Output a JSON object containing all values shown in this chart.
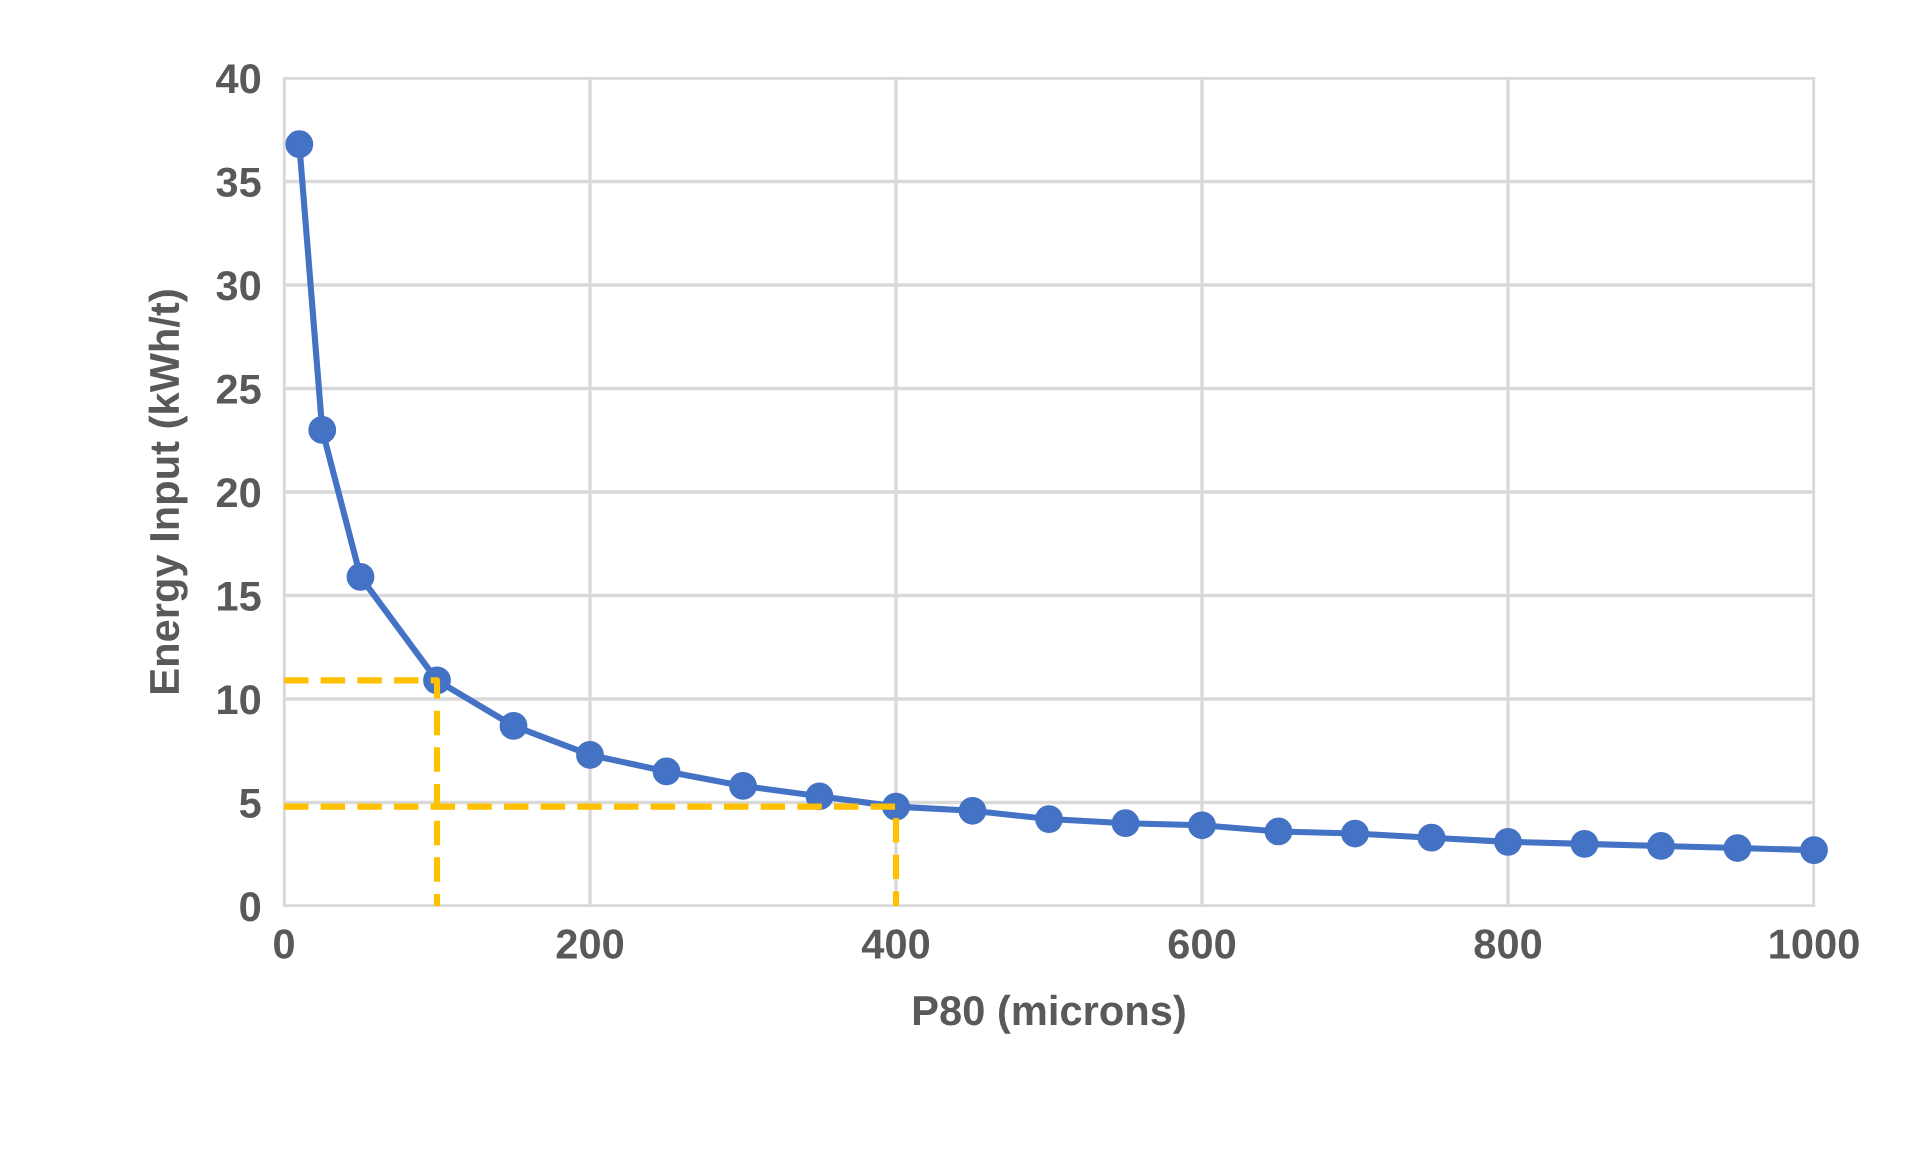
{
  "chart_data": {
    "type": "line",
    "xlabel": "P80 (microns)",
    "ylabel": "Energy Input (kWh/t)",
    "xlim": [
      0,
      1000
    ],
    "xticks": [
      0,
      200,
      400,
      600,
      800,
      1000
    ],
    "ylim": [
      0,
      40
    ],
    "yticks": [
      0,
      5,
      10,
      15,
      20,
      25,
      30,
      35,
      40
    ],
    "grid": true,
    "series": [
      {
        "color": "#4472c4",
        "marker": "circle",
        "line_style": "solid",
        "x": [
          10,
          25,
          50,
          100,
          150,
          200,
          250,
          300,
          350,
          400,
          450,
          500,
          550,
          600,
          650,
          700,
          750,
          800,
          850,
          900,
          950,
          1000
        ],
        "values": [
          36.8,
          23.0,
          15.9,
          10.9,
          8.7,
          7.3,
          6.5,
          5.8,
          5.3,
          4.8,
          4.6,
          4.2,
          4.0,
          3.9,
          3.6,
          3.5,
          3.3,
          3.1,
          3.0,
          2.9,
          2.8,
          2.7
        ]
      },
      {
        "color": "#ffc000",
        "marker": "none",
        "line_style": "dashed",
        "x": [
          0,
          100,
          100
        ],
        "values": [
          10.9,
          10.9,
          0
        ]
      },
      {
        "color": "#ffc000",
        "marker": "none",
        "line_style": "dashed",
        "x": [
          0,
          400,
          400
        ],
        "values": [
          4.8,
          4.8,
          0
        ]
      }
    ]
  }
}
